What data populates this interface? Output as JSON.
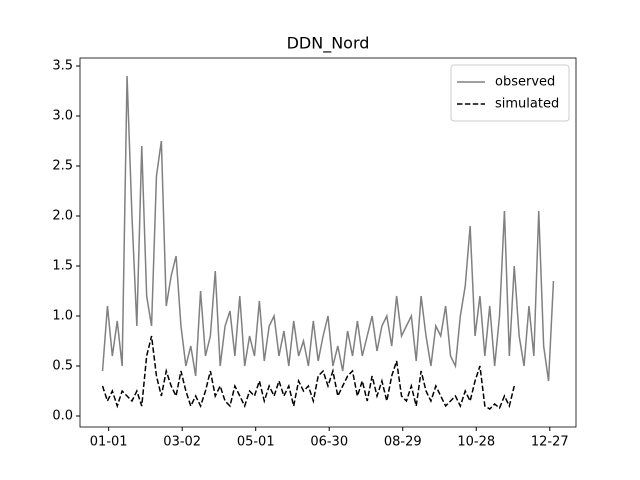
{
  "chart_data": {
    "type": "line",
    "title": "DDN_Nord",
    "x": [
      -5,
      -1,
      3,
      7,
      11,
      15,
      19,
      23,
      27,
      31,
      35,
      39,
      43,
      47,
      51,
      55,
      59,
      63,
      67,
      71,
      75,
      79,
      83,
      87,
      91,
      95,
      99,
      103,
      107,
      111,
      115,
      119,
      123,
      127,
      131,
      135,
      139,
      143,
      147,
      151,
      155,
      159,
      163,
      167,
      171,
      175,
      179,
      183,
      187,
      191,
      195,
      199,
      203,
      207,
      211,
      215,
      219,
      223,
      227,
      231,
      235,
      239,
      243,
      247,
      251,
      255,
      259,
      263,
      267,
      271,
      275,
      279,
      283,
      287,
      291,
      295,
      299,
      303,
      307,
      311,
      315,
      319,
      323,
      327,
      331,
      335,
      339,
      343,
      347,
      351,
      355,
      359,
      363
    ],
    "series": [
      {
        "name": "observed",
        "color": "#808080",
        "linestyle": "solid",
        "values": [
          0.45,
          1.1,
          0.6,
          0.95,
          0.5,
          3.4,
          2.0,
          0.9,
          2.7,
          1.2,
          0.9,
          2.4,
          2.75,
          1.1,
          1.4,
          1.6,
          0.9,
          0.5,
          0.7,
          0.4,
          1.25,
          0.6,
          0.8,
          1.45,
          0.5,
          0.9,
          1.05,
          0.6,
          1.2,
          0.5,
          0.8,
          0.6,
          1.15,
          0.55,
          0.9,
          1.0,
          0.6,
          0.85,
          0.5,
          0.95,
          0.6,
          0.75,
          0.5,
          0.95,
          0.55,
          0.8,
          1.0,
          0.5,
          0.7,
          0.45,
          0.85,
          0.6,
          0.95,
          0.6,
          0.8,
          1.0,
          0.65,
          0.9,
          1.0,
          0.7,
          1.2,
          0.8,
          0.9,
          1.0,
          0.55,
          1.2,
          0.8,
          0.5,
          0.9,
          0.8,
          1.1,
          0.6,
          0.5,
          1.0,
          1.3,
          1.9,
          0.8,
          1.2,
          0.6,
          1.1,
          0.5,
          1.0,
          2.05,
          0.6,
          1.5,
          0.8,
          0.5,
          1.1,
          0.6,
          2.05,
          0.7,
          0.35,
          1.35
        ]
      },
      {
        "name": "simulated",
        "color": "#000000",
        "linestyle": "dashed",
        "values": [
          0.3,
          0.15,
          0.25,
          0.1,
          0.25,
          0.2,
          0.15,
          0.25,
          0.1,
          0.6,
          0.8,
          0.4,
          0.2,
          0.45,
          0.3,
          0.2,
          0.45,
          0.25,
          0.1,
          0.2,
          0.1,
          0.25,
          0.45,
          0.2,
          0.3,
          0.15,
          0.1,
          0.3,
          0.2,
          0.1,
          0.25,
          0.2,
          0.35,
          0.15,
          0.3,
          0.2,
          0.35,
          0.2,
          0.3,
          0.1,
          0.35,
          0.25,
          0.3,
          0.15,
          0.4,
          0.45,
          0.3,
          0.45,
          0.2,
          0.3,
          0.4,
          0.45,
          0.2,
          0.35,
          0.15,
          0.4,
          0.2,
          0.35,
          0.15,
          0.4,
          0.55,
          0.2,
          0.15,
          0.3,
          0.1,
          0.45,
          0.25,
          0.15,
          0.3,
          0.2,
          0.1,
          0.15,
          0.2,
          0.1,
          0.25,
          0.15,
          0.35,
          0.5,
          0.1,
          0.07,
          0.12,
          0.08,
          0.2,
          0.1,
          0.3,
          null,
          null,
          null,
          null,
          null,
          null,
          null,
          null
        ]
      }
    ],
    "xlim": [
      -23.4,
      381.4
    ],
    "xticks": [
      {
        "value": 0,
        "label": "01-01"
      },
      {
        "value": 60,
        "label": "03-02"
      },
      {
        "value": 120,
        "label": "05-01"
      },
      {
        "value": 180,
        "label": "06-30"
      },
      {
        "value": 240,
        "label": "08-29"
      },
      {
        "value": 300,
        "label": "10-28"
      },
      {
        "value": 360,
        "label": "12-27"
      }
    ],
    "ylim": [
      -0.11,
      3.58
    ],
    "yticks": [
      {
        "value": 0,
        "label": "0.0"
      },
      0.5,
      {
        "value": 1,
        "label": "1.0"
      },
      1.5,
      {
        "value": 2,
        "label": "2.0"
      },
      2.5,
      {
        "value": 3,
        "label": "3.0"
      },
      3.5
    ],
    "grid": false,
    "legend": "upper right"
  }
}
